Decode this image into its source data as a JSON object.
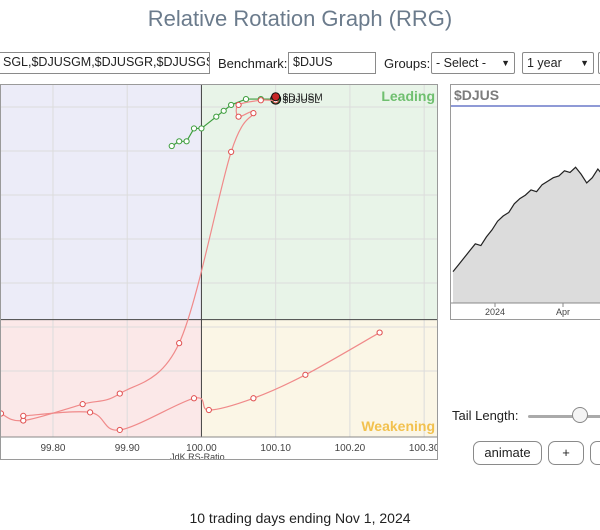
{
  "page": {
    "title": "Relative Rotation Graph (RRG)",
    "footer": "10 trading days ending Nov 1, 2024"
  },
  "controls": {
    "symbols_value": "SGL,$DJUSGM,$DJUSGR,$DJUSGS",
    "benchmark_label": "Benchmark:",
    "benchmark_value": "$DJUS",
    "groups_label": "Groups:",
    "groups_value": "- Select -",
    "period_value": "1 year",
    "tail_length_label": "Tail Length:",
    "tail_length": 0.65,
    "animate_label": "animate",
    "plus_label": "+"
  },
  "chart_data": [
    {
      "type": "scatter",
      "xlabel": "JdK RS-Ratio",
      "ylabel": "",
      "xlim": [
        99.73,
        100.32
      ],
      "ylim": [
        99.0,
        102.0
      ],
      "center": [
        100.0,
        100.0
      ],
      "x_ticks": [
        "99.80",
        "99.90",
        "100.00",
        "100.10",
        "100.20",
        "100.30"
      ],
      "x_tick_values": [
        99.8,
        99.9,
        100.0,
        100.1,
        100.2,
        100.3
      ],
      "quadrant_labels": {
        "leading": "Leading",
        "weakening": "Weakening"
      },
      "quadrant_colors": {
        "leading": "#e8f4e8",
        "weakening": "#fbf6e6",
        "lagging": "#fbe8e8",
        "improving": "#ececf8"
      },
      "series": [
        {
          "name": "$DJUSL",
          "color": "#3e9e3e",
          "points": [
            [
              99.96,
              101.48
            ],
            [
              99.97,
              101.52
            ],
            [
              99.98,
              101.52
            ],
            [
              99.99,
              101.63
            ],
            [
              100.0,
              101.63
            ],
            [
              100.02,
              101.73
            ],
            [
              100.03,
              101.78
            ],
            [
              100.04,
              101.83
            ],
            [
              100.06,
              101.88
            ],
            [
              100.08,
              101.88
            ],
            [
              100.1,
              101.88
            ]
          ]
        },
        {
          "name": "$DJUSM",
          "color": "#e05050",
          "points": [
            [
              99.73,
              99.2
            ],
            [
              99.76,
              99.14
            ],
            [
              99.84,
              99.28
            ],
            [
              99.89,
              99.37
            ],
            [
              99.97,
              99.8
            ],
            [
              100.04,
              101.43
            ],
            [
              100.07,
              101.76
            ],
            [
              100.05,
              101.73
            ],
            [
              100.05,
              101.83
            ],
            [
              100.08,
              101.87
            ],
            [
              100.1,
              101.87
            ],
            [
              100.1,
              101.9
            ]
          ]
        },
        {
          "name": "",
          "color": "#e05050",
          "points": [
            [
              99.76,
              99.18
            ],
            [
              99.85,
              99.21
            ],
            [
              99.89,
              99.06
            ],
            [
              99.99,
              99.33
            ],
            [
              100.01,
              99.23
            ],
            [
              100.07,
              99.33
            ],
            [
              100.14,
              99.53
            ],
            [
              100.24,
              99.89
            ]
          ]
        }
      ],
      "mini_chart": {
        "symbol": "$DJUS",
        "x_ticks": [
          "2024",
          "Apr"
        ],
        "line_color": "#222222",
        "fill_color": "#dcdcdc",
        "values": [
          0.18,
          0.22,
          0.26,
          0.3,
          0.34,
          0.33,
          0.38,
          0.42,
          0.47,
          0.5,
          0.52,
          0.57,
          0.6,
          0.62,
          0.65,
          0.64,
          0.68,
          0.7,
          0.72,
          0.73,
          0.76,
          0.75,
          0.78,
          0.74,
          0.69,
          0.72,
          0.77,
          0.73,
          0.8
        ]
      }
    }
  ]
}
